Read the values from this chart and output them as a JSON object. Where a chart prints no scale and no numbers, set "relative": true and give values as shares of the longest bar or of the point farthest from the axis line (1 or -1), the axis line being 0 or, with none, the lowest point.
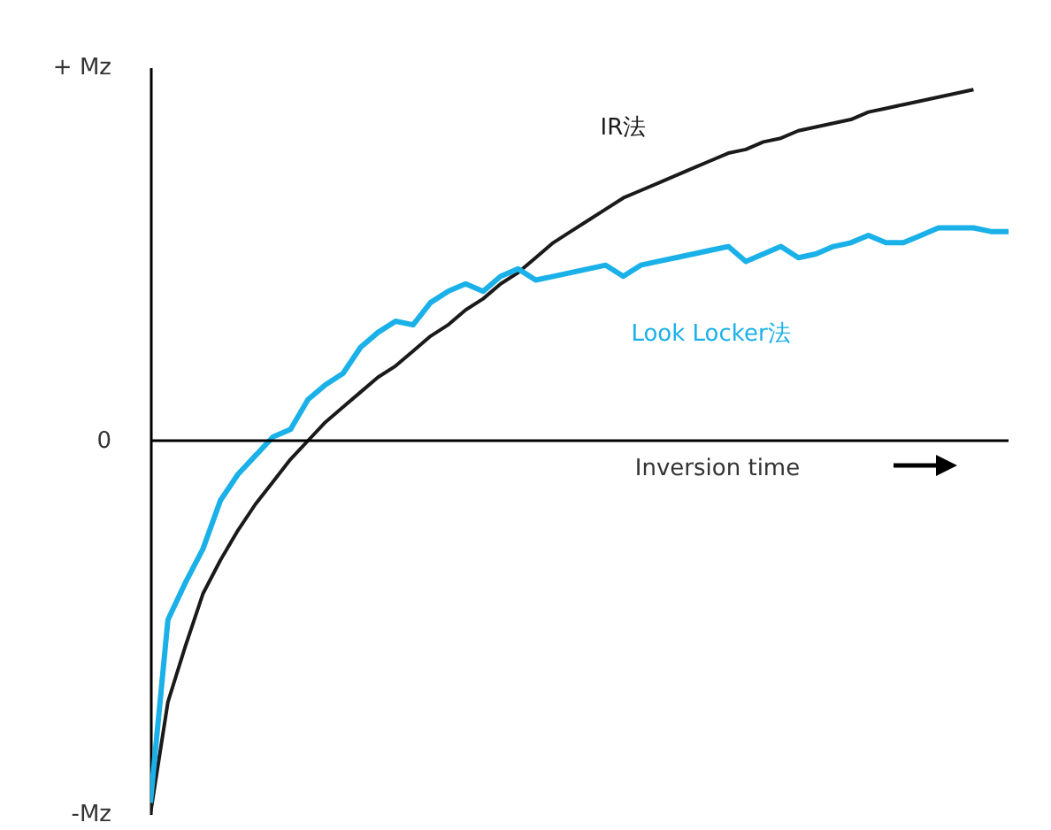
{
  "chart_data": {
    "type": "line",
    "xlabel": "Inversion time",
    "categories": [
      null,
      null,
      null,
      null,
      null,
      null,
      null,
      null,
      null,
      null,
      null,
      null,
      null,
      null,
      null,
      null,
      null,
      null,
      null,
      null,
      null,
      null,
      null,
      null,
      null,
      null,
      null,
      null,
      null,
      null,
      null,
      null,
      null,
      null,
      null,
      null,
      null,
      null,
      null,
      null,
      null,
      null,
      null,
      null,
      null,
      null,
      null,
      null,
      null,
      null
    ],
    "series": [
      {
        "name": "IR法",
        "color": "#1a1a1a",
        "values": [
          -1,
          -0.7,
          -0.55,
          -0.41,
          -0.32,
          -0.24,
          -0.17,
          -0.11,
          -0.05,
          0,
          0.05,
          0.09,
          0.13,
          0.17,
          0.2,
          0.24,
          0.28,
          0.31,
          0.35,
          0.38,
          0.42,
          0.45,
          0.49,
          0.53,
          0.56,
          0.59,
          0.62,
          0.65,
          0.67,
          0.69,
          0.71,
          0.73,
          0.75,
          0.77,
          0.78,
          0.8,
          0.81,
          0.83,
          0.84,
          0.85,
          0.86,
          0.88,
          0.89,
          0.9,
          0.91,
          0.92,
          0.93,
          0.94,
          null,
          null
        ]
      },
      {
        "name": "Look Locker法",
        "color": "#1ab0e8",
        "values": [
          -0.97,
          -0.48,
          -0.38,
          -0.29,
          -0.16,
          -0.09,
          -0.04,
          0.01,
          0.03,
          0.11,
          0.15,
          0.18,
          0.25,
          0.29,
          0.32,
          0.31,
          0.37,
          0.4,
          0.42,
          0.4,
          0.44,
          0.46,
          0.43,
          0.44,
          0.45,
          0.46,
          0.47,
          0.44,
          0.47,
          0.48,
          0.49,
          0.5,
          0.51,
          0.52,
          0.48,
          0.5,
          0.52,
          0.49,
          0.5,
          0.52,
          0.53,
          0.55,
          0.53,
          0.53,
          0.55,
          0.57,
          0.57,
          0.57,
          0.56,
          0.56
        ]
      }
    ],
    "relative": true,
    "annotations": [
      "+ Mz",
      "0",
      "-Mz"
    ],
    "ref_lines": [
      {
        "axis": "y",
        "value": 0,
        "color": "#000000"
      }
    ],
    "legend": false,
    "marker": "none",
    "line_style": "solid"
  }
}
